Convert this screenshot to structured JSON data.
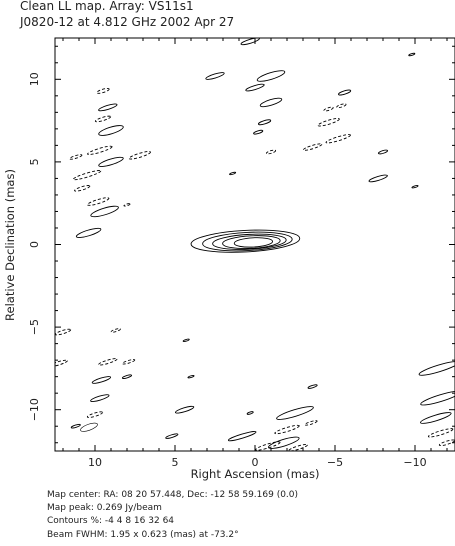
{
  "header": {
    "title": "Clean LL map.  Array:  VS11s1",
    "subtitle": "J0820-12 at 4.812 GHz 2002 Apr 27"
  },
  "footer": {
    "map_center": "Map center:  RA: 08 20 57.448,  Dec: -12 58 59.169 (0.0)",
    "map_peak": "Map peak: 0.269 Jy/beam",
    "contours": "Contours %: -4 4 8 16 32 64",
    "beam": "Beam FWHM: 1.95 x 0.623 (mas) at -73.2°"
  },
  "chart_data": {
    "type": "contour",
    "xlabel": "Right Ascension  (mas)",
    "ylabel": "Relative Declination  (mas)",
    "xlim": [
      12.5,
      -12.5
    ],
    "ylim": [
      -12.5,
      12.5
    ],
    "x_ticks": [
      10,
      5,
      0,
      -5,
      -10
    ],
    "y_ticks": [
      10,
      5,
      0,
      -5,
      -10
    ],
    "x_tick_labels": [
      "10",
      "5",
      "0",
      "−5",
      "−10"
    ],
    "y_tick_labels": [
      "10",
      "5",
      "0",
      "−5",
      "−10"
    ],
    "contour_levels_percent": [
      -4,
      4,
      8,
      16,
      32,
      64
    ],
    "peak_jy_per_beam": 0.269,
    "beam": {
      "x": 10.0,
      "y": -11.0,
      "major_mas": 1.95,
      "minor_mas": 0.623,
      "pa_deg": -73.2,
      "color": "#333333"
    },
    "core": {
      "x": 0.6,
      "y": 0.2,
      "pa_deg": 75,
      "contours": [
        {
          "level": 4,
          "major": 3.4,
          "minor": 0.65
        },
        {
          "level": 8,
          "major": 2.8,
          "minor": 0.55
        },
        {
          "level": 16,
          "major": 2.3,
          "minor": 0.45
        },
        {
          "level": 32,
          "major": 1.8,
          "minor": 0.38
        },
        {
          "level": 64,
          "major": 1.2,
          "minor": 0.28
        }
      ]
    },
    "sidelobes": [
      {
        "x": 0.3,
        "y": 12.3,
        "rx": 0.6,
        "ry": 0.12,
        "neg": false
      },
      {
        "x": 2.5,
        "y": 10.2,
        "rx": 0.6,
        "ry": 0.12,
        "neg": false
      },
      {
        "x": -1.0,
        "y": 10.2,
        "rx": 0.9,
        "ry": 0.2,
        "neg": false
      },
      {
        "x": 0.0,
        "y": 9.5,
        "rx": 0.6,
        "ry": 0.12,
        "neg": false
      },
      {
        "x": -5.6,
        "y": 9.2,
        "rx": 0.4,
        "ry": 0.1,
        "neg": false
      },
      {
        "x": -1.0,
        "y": 8.6,
        "rx": 0.7,
        "ry": 0.17,
        "neg": false
      },
      {
        "x": -4.6,
        "y": 8.2,
        "rx": 0.3,
        "ry": 0.08,
        "neg": true
      },
      {
        "x": -5.4,
        "y": 8.4,
        "rx": 0.3,
        "ry": 0.08,
        "neg": true
      },
      {
        "x": -0.6,
        "y": 7.4,
        "rx": 0.4,
        "ry": 0.1,
        "neg": false
      },
      {
        "x": -0.2,
        "y": 6.8,
        "rx": 0.3,
        "ry": 0.08,
        "neg": false
      },
      {
        "x": -4.6,
        "y": 7.4,
        "rx": 0.7,
        "ry": 0.12,
        "neg": true
      },
      {
        "x": -5.2,
        "y": 6.4,
        "rx": 0.8,
        "ry": 0.12,
        "neg": true
      },
      {
        "x": -3.6,
        "y": 5.9,
        "rx": 0.6,
        "ry": 0.1,
        "neg": true
      },
      {
        "x": -1.0,
        "y": 5.6,
        "rx": 0.3,
        "ry": 0.08,
        "neg": true
      },
      {
        "x": 1.4,
        "y": 4.3,
        "rx": 0.2,
        "ry": 0.05,
        "neg": false
      },
      {
        "x": -8.0,
        "y": 5.6,
        "rx": 0.3,
        "ry": 0.08,
        "neg": false
      },
      {
        "x": -7.7,
        "y": 4.0,
        "rx": 0.6,
        "ry": 0.12,
        "neg": false
      },
      {
        "x": -9.8,
        "y": 11.5,
        "rx": 0.2,
        "ry": 0.05,
        "neg": false
      },
      {
        "x": -10.0,
        "y": 3.5,
        "rx": 0.2,
        "ry": 0.05,
        "neg": false
      },
      {
        "x": 9.5,
        "y": 9.3,
        "rx": 0.4,
        "ry": 0.1,
        "neg": true
      },
      {
        "x": 9.2,
        "y": 8.3,
        "rx": 0.6,
        "ry": 0.12,
        "neg": false
      },
      {
        "x": 9.5,
        "y": 7.6,
        "rx": 0.5,
        "ry": 0.1,
        "neg": true
      },
      {
        "x": 9.0,
        "y": 6.9,
        "rx": 0.8,
        "ry": 0.2,
        "neg": false
      },
      {
        "x": 9.7,
        "y": 5.7,
        "rx": 0.8,
        "ry": 0.12,
        "neg": true
      },
      {
        "x": 11.2,
        "y": 5.3,
        "rx": 0.4,
        "ry": 0.08,
        "neg": true
      },
      {
        "x": 9.0,
        "y": 5.0,
        "rx": 0.8,
        "ry": 0.17,
        "neg": false
      },
      {
        "x": 7.2,
        "y": 5.4,
        "rx": 0.7,
        "ry": 0.12,
        "neg": true
      },
      {
        "x": 10.5,
        "y": 4.2,
        "rx": 0.9,
        "ry": 0.12,
        "neg": true
      },
      {
        "x": 10.8,
        "y": 3.4,
        "rx": 0.5,
        "ry": 0.1,
        "neg": true
      },
      {
        "x": 9.8,
        "y": 2.6,
        "rx": 0.7,
        "ry": 0.12,
        "neg": true
      },
      {
        "x": 9.4,
        "y": 2.0,
        "rx": 0.9,
        "ry": 0.2,
        "neg": false
      },
      {
        "x": 8.0,
        "y": 2.4,
        "rx": 0.2,
        "ry": 0.05,
        "neg": true
      },
      {
        "x": 10.4,
        "y": 0.7,
        "rx": 0.8,
        "ry": 0.17,
        "neg": false
      },
      {
        "x": 12.0,
        "y": -5.3,
        "rx": 0.5,
        "ry": 0.1,
        "neg": true
      },
      {
        "x": 8.7,
        "y": -5.2,
        "rx": 0.3,
        "ry": 0.07,
        "neg": true
      },
      {
        "x": 4.3,
        "y": -5.8,
        "rx": 0.2,
        "ry": 0.05,
        "neg": false
      },
      {
        "x": 12.3,
        "y": -7.2,
        "rx": 0.6,
        "ry": 0.1,
        "neg": true
      },
      {
        "x": 9.2,
        "y": -7.1,
        "rx": 0.6,
        "ry": 0.1,
        "neg": true
      },
      {
        "x": 7.9,
        "y": -7.1,
        "rx": 0.4,
        "ry": 0.08,
        "neg": true
      },
      {
        "x": 9.6,
        "y": -8.2,
        "rx": 0.6,
        "ry": 0.12,
        "neg": false
      },
      {
        "x": 8.0,
        "y": -8.0,
        "rx": 0.3,
        "ry": 0.07,
        "neg": false
      },
      {
        "x": 4.0,
        "y": -8.0,
        "rx": 0.2,
        "ry": 0.05,
        "neg": false
      },
      {
        "x": 9.7,
        "y": -9.3,
        "rx": 0.6,
        "ry": 0.12,
        "neg": false
      },
      {
        "x": 10.0,
        "y": -10.3,
        "rx": 0.5,
        "ry": 0.1,
        "neg": true
      },
      {
        "x": 4.4,
        "y": -10.0,
        "rx": 0.6,
        "ry": 0.12,
        "neg": false
      },
      {
        "x": -3.6,
        "y": -8.6,
        "rx": 0.3,
        "ry": 0.07,
        "neg": false
      },
      {
        "x": 0.3,
        "y": -10.2,
        "rx": 0.2,
        "ry": 0.06,
        "neg": false
      },
      {
        "x": -2.5,
        "y": -10.2,
        "rx": 1.2,
        "ry": 0.2,
        "neg": false
      },
      {
        "x": -3.5,
        "y": -10.8,
        "rx": 0.4,
        "ry": 0.08,
        "neg": true
      },
      {
        "x": -2.0,
        "y": -11.2,
        "rx": 0.8,
        "ry": 0.12,
        "neg": true
      },
      {
        "x": 0.8,
        "y": -11.6,
        "rx": 0.9,
        "ry": 0.12,
        "neg": false
      },
      {
        "x": -1.8,
        "y": -12.0,
        "rx": 1.0,
        "ry": 0.2,
        "neg": false
      },
      {
        "x": -0.8,
        "y": -12.2,
        "rx": 0.8,
        "ry": 0.12,
        "neg": true
      },
      {
        "x": -2.7,
        "y": -12.3,
        "rx": 0.6,
        "ry": 0.1,
        "neg": true
      },
      {
        "x": 5.2,
        "y": -11.6,
        "rx": 0.4,
        "ry": 0.08,
        "neg": false
      },
      {
        "x": 11.2,
        "y": -11.0,
        "rx": 0.3,
        "ry": 0.07,
        "neg": false
      },
      {
        "x": -11.5,
        "y": -7.5,
        "rx": 1.3,
        "ry": 0.2,
        "neg": false
      },
      {
        "x": -11.6,
        "y": -9.3,
        "rx": 1.3,
        "ry": 0.2,
        "neg": false
      },
      {
        "x": -11.3,
        "y": -10.5,
        "rx": 1.0,
        "ry": 0.17,
        "neg": false
      },
      {
        "x": -11.6,
        "y": -11.4,
        "rx": 0.8,
        "ry": 0.12,
        "neg": true
      },
      {
        "x": -12.0,
        "y": -12.0,
        "rx": 0.5,
        "ry": 0.1,
        "neg": true
      }
    ]
  }
}
